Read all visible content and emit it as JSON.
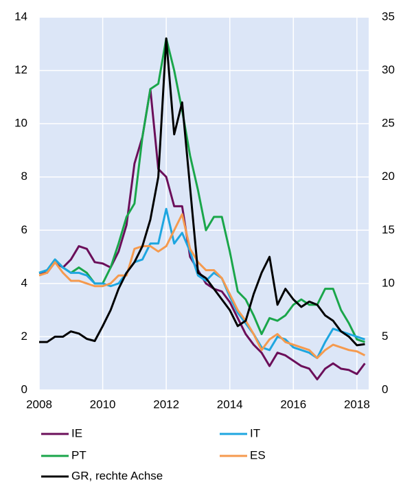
{
  "chart_data": {
    "type": "line",
    "x": [
      2008,
      2008.25,
      2008.5,
      2008.75,
      2009,
      2009.25,
      2009.5,
      2009.75,
      2010,
      2010.25,
      2010.5,
      2010.75,
      2011,
      2011.25,
      2011.5,
      2011.75,
      2012,
      2012.25,
      2012.5,
      2012.75,
      2013,
      2013.25,
      2013.5,
      2013.75,
      2014,
      2014.25,
      2014.5,
      2014.75,
      2015,
      2015.25,
      2015.5,
      2015.75,
      2016,
      2016.25,
      2016.5,
      2016.75,
      2017,
      2017.25,
      2017.5,
      2017.75,
      2018,
      2018.25
    ],
    "series": [
      {
        "name": "IE",
        "color": "#6b0f5a",
        "values": [
          4.4,
          4.4,
          4.8,
          4.6,
          4.9,
          5.4,
          5.3,
          4.8,
          4.75,
          4.6,
          5.2,
          6.2,
          8.5,
          9.5,
          11.3,
          8.3,
          8.0,
          6.9,
          6.9,
          5.0,
          4.5,
          4.0,
          3.8,
          3.7,
          3.3,
          2.7,
          2.1,
          1.7,
          1.4,
          0.9,
          1.4,
          1.3,
          1.1,
          0.9,
          0.8,
          0.4,
          0.8,
          1.0,
          0.8,
          0.75,
          0.6,
          1.0
        ]
      },
      {
        "name": "PT",
        "color": "#1aa64a",
        "values": [
          4.4,
          4.5,
          4.9,
          4.6,
          4.4,
          4.6,
          4.4,
          4.0,
          4.0,
          4.6,
          5.5,
          6.5,
          7.0,
          9.5,
          11.3,
          11.5,
          13.2,
          12.0,
          10.5,
          8.8,
          7.5,
          6.0,
          6.5,
          6.5,
          5.2,
          3.7,
          3.4,
          2.8,
          2.1,
          2.7,
          2.6,
          2.8,
          3.2,
          3.4,
          3.2,
          3.2,
          3.8,
          3.8,
          3.0,
          2.5,
          1.9,
          1.8
        ]
      },
      {
        "name": "IT",
        "color": "#1ea6e0",
        "values": [
          4.4,
          4.5,
          4.9,
          4.6,
          4.4,
          4.4,
          4.3,
          4.0,
          4.0,
          3.9,
          4.0,
          4.4,
          4.8,
          4.9,
          5.5,
          5.5,
          6.8,
          5.5,
          5.9,
          5.2,
          4.3,
          4.1,
          4.4,
          4.2,
          3.5,
          2.9,
          2.5,
          2.1,
          1.6,
          1.5,
          2.0,
          1.9,
          1.6,
          1.5,
          1.4,
          1.2,
          1.8,
          2.3,
          2.2,
          2.1,
          2.0,
          1.9
        ]
      },
      {
        "name": "ES",
        "color": "#f59a4e",
        "values": [
          4.3,
          4.4,
          4.8,
          4.4,
          4.1,
          4.1,
          4.0,
          3.9,
          3.9,
          4.0,
          4.3,
          4.3,
          5.3,
          5.4,
          5.4,
          5.2,
          5.4,
          6.0,
          6.6,
          5.3,
          4.8,
          4.5,
          4.5,
          4.2,
          3.6,
          3.0,
          2.6,
          2.1,
          1.5,
          1.9,
          2.1,
          1.8,
          1.7,
          1.6,
          1.5,
          1.2,
          1.5,
          1.7,
          1.6,
          1.5,
          1.45,
          1.3
        ]
      },
      {
        "name": "GR, rechte Achse",
        "color": "#000000",
        "axis": "y2",
        "values": [
          4.5,
          4.5,
          5.0,
          5.0,
          5.5,
          5.3,
          4.8,
          4.6,
          6.0,
          7.5,
          9.5,
          11.0,
          12.0,
          13.5,
          16.0,
          20.0,
          33.0,
          24.0,
          27.0,
          19.0,
          11.0,
          10.5,
          9.5,
          8.5,
          7.5,
          6.0,
          6.5,
          9.0,
          11.0,
          12.5,
          8.0,
          9.5,
          8.5,
          7.8,
          8.3,
          8.0,
          7.0,
          6.5,
          5.5,
          5.0,
          4.2,
          4.3
        ]
      }
    ],
    "xlim": [
      2008,
      2018.37
    ],
    "xticks": [
      2008,
      2010,
      2012,
      2014,
      2016,
      2018
    ],
    "ylim": [
      0,
      14
    ],
    "yticks": [
      0,
      2,
      4,
      6,
      8,
      10,
      12,
      14
    ],
    "y2lim": [
      0,
      35
    ],
    "y2ticks": [
      0,
      5,
      10,
      15,
      20,
      25,
      30,
      35
    ],
    "grid": true
  }
}
